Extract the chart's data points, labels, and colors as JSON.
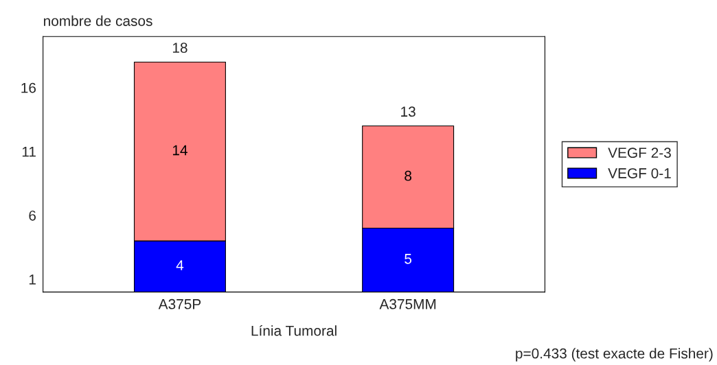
{
  "chart_data": {
    "type": "bar",
    "stacked": true,
    "ylabel": "nombre de casos",
    "xlabel": "Línia Tumoral",
    "categories": [
      "A375P",
      "A375MM"
    ],
    "series": [
      {
        "name": "VEGF 0-1",
        "color": "#0000ff",
        "values": [
          4,
          5
        ]
      },
      {
        "name": "VEGF 2-3",
        "color": "#ff8080",
        "values": [
          14,
          8
        ]
      }
    ],
    "ylim": [
      0,
      20
    ],
    "yticks": [
      1,
      6,
      11,
      16
    ],
    "grid": false,
    "legend": "right",
    "data_labels": true,
    "totals": [
      "18",
      "13"
    ],
    "annotations": [
      "p=0.433 (test exacte de Fisher)"
    ]
  }
}
